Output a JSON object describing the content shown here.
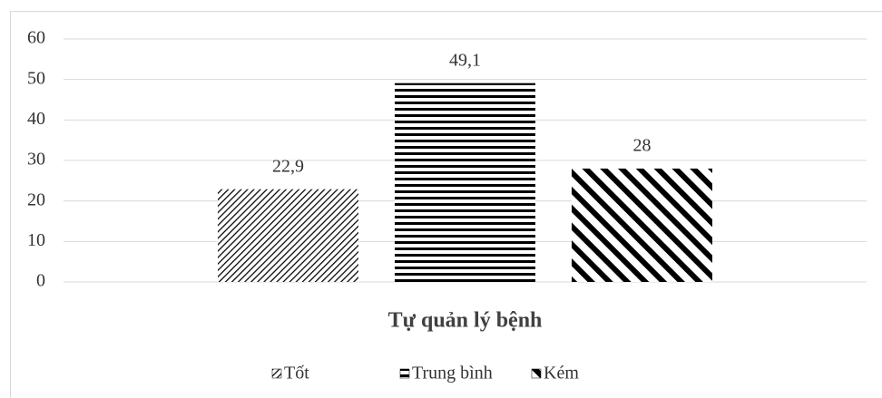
{
  "chart_data": {
    "type": "bar",
    "categories": [
      "Tự quản lý bệnh"
    ],
    "series": [
      {
        "name": "Tốt",
        "color": "#000000",
        "pattern": "diagonal-fine",
        "values": [
          22.9
        ],
        "value_labels": [
          "22,9"
        ]
      },
      {
        "name": "Trung bình",
        "color": "#000000",
        "pattern": "horizontal",
        "values": [
          49.1
        ],
        "value_labels": [
          "49,1"
        ]
      },
      {
        "name": "Kém",
        "color": "#000000",
        "pattern": "diagonal-back",
        "values": [
          28
        ]
      }
    ],
    "ylim": [
      0,
      60
    ],
    "yticks": [
      0,
      10,
      20,
      30,
      40,
      50,
      60
    ],
    "grid": true,
    "legend": "bottom"
  }
}
